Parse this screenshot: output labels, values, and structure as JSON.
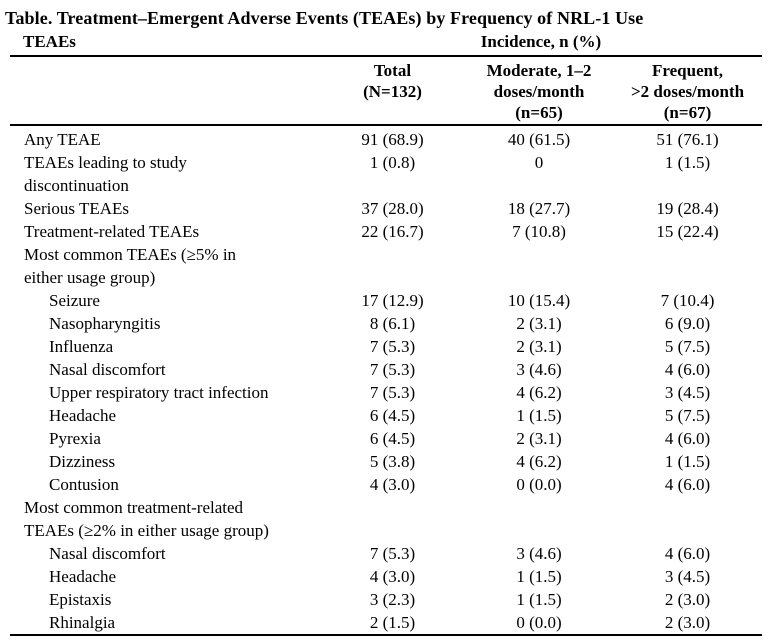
{
  "page": {
    "title": "Table. Treatment–Emergent Adverse Events (TEAEs) by Frequency of NRL-1 Use"
  },
  "table": {
    "stub_header": "TEAEs",
    "spanner_header": "Incidence, n (%)",
    "columns": [
      "Total\n(N=132)",
      "Moderate, 1–2\ndoses/month\n(n=65)",
      "Frequent,\n>2 doses/month\n(n=67)"
    ],
    "rows": [
      {
        "label": "Any TEAE",
        "indent": false,
        "section": false,
        "values": [
          "91 (68.9)",
          "40 (61.5)",
          "51 (76.1)"
        ]
      },
      {
        "label": "TEAEs leading to study\ndiscontinuation",
        "indent": false,
        "section": false,
        "values": [
          "1 (0.8)",
          "0",
          "1 (1.5)"
        ]
      },
      {
        "label": "Serious TEAEs",
        "indent": false,
        "section": false,
        "values": [
          "37 (28.0)",
          "18 (27.7)",
          "19 (28.4)"
        ]
      },
      {
        "label": "Treatment-related TEAEs",
        "indent": false,
        "section": false,
        "values": [
          "22 (16.7)",
          "7 (10.8)",
          "15 (22.4)"
        ]
      },
      {
        "label": "Most common TEAEs (≥5% in\neither usage group)",
        "indent": false,
        "section": true,
        "values": []
      },
      {
        "label": "Seizure",
        "indent": true,
        "section": false,
        "values": [
          "17 (12.9)",
          "10 (15.4)",
          "7 (10.4)"
        ]
      },
      {
        "label": "Nasopharyngitis",
        "indent": true,
        "section": false,
        "values": [
          "8 (6.1)",
          "2 (3.1)",
          "6 (9.0)"
        ]
      },
      {
        "label": "Influenza",
        "indent": true,
        "section": false,
        "values": [
          "7 (5.3)",
          "2 (3.1)",
          "5 (7.5)"
        ]
      },
      {
        "label": "Nasal discomfort",
        "indent": true,
        "section": false,
        "values": [
          "7 (5.3)",
          "3 (4.6)",
          "4 (6.0)"
        ]
      },
      {
        "label": "Upper respiratory tract infection",
        "indent": true,
        "section": false,
        "values": [
          "7 (5.3)",
          "4 (6.2)",
          "3 (4.5)"
        ]
      },
      {
        "label": "Headache",
        "indent": true,
        "section": false,
        "values": [
          "6 (4.5)",
          "1 (1.5)",
          "5 (7.5)"
        ]
      },
      {
        "label": "Pyrexia",
        "indent": true,
        "section": false,
        "values": [
          "6 (4.5)",
          "2 (3.1)",
          "4 (6.0)"
        ]
      },
      {
        "label": "Dizziness",
        "indent": true,
        "section": false,
        "values": [
          "5 (3.8)",
          "4 (6.2)",
          "1 (1.5)"
        ]
      },
      {
        "label": "Contusion",
        "indent": true,
        "section": false,
        "values": [
          "4 (3.0)",
          "0 (0.0)",
          "4 (6.0)"
        ]
      },
      {
        "label": "Most common treatment-related\nTEAEs (≥2% in either usage group)",
        "indent": false,
        "section": true,
        "values": []
      },
      {
        "label": "Nasal discomfort",
        "indent": true,
        "section": false,
        "values": [
          "7 (5.3)",
          "3 (4.6)",
          "4 (6.0)"
        ]
      },
      {
        "label": "Headache",
        "indent": true,
        "section": false,
        "values": [
          "4 (3.0)",
          "1 (1.5)",
          "3 (4.5)"
        ]
      },
      {
        "label": "Epistaxis",
        "indent": true,
        "section": false,
        "values": [
          "3 (2.3)",
          "1 (1.5)",
          "2 (3.0)"
        ]
      },
      {
        "label": "Rhinalgia",
        "indent": true,
        "section": false,
        "values": [
          "2 (1.5)",
          "0 (0.0)",
          "2 (3.0)"
        ]
      }
    ]
  }
}
